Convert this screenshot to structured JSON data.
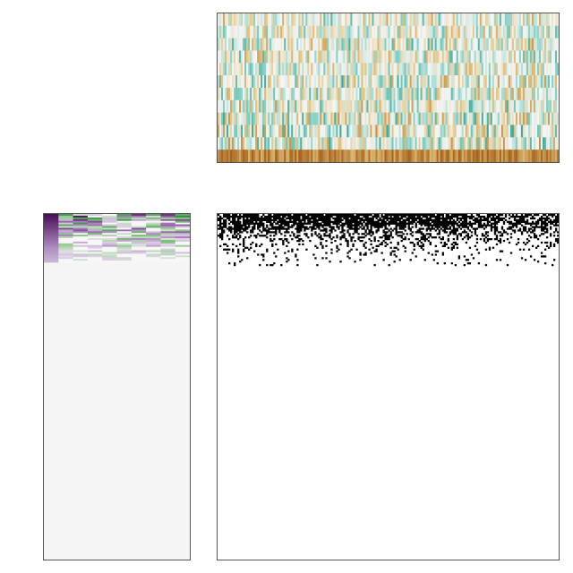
{
  "chart_data": [
    {
      "type": "heatmap",
      "panel": "top",
      "title": "",
      "xlabel": "",
      "ylabel": "",
      "n_rows": 12,
      "n_cols": 190,
      "value_range": [
        -1,
        1
      ],
      "colorscale": [
        "#018571",
        "#80cdc1",
        "#f5f5f5",
        "#dfc27d",
        "#a6611a"
      ],
      "row_profile": [
        0.1,
        0.05,
        0.15,
        0.1,
        0.05,
        0.2,
        0.1,
        0.15,
        0.2,
        0.25,
        0.2,
        0.9
      ],
      "grid": false,
      "legend": "none"
    },
    {
      "type": "heatmap",
      "panel": "left",
      "title": "",
      "xlabel": "",
      "ylabel": "",
      "n_rows": 200,
      "n_cols": 10,
      "value_range": [
        -1,
        1
      ],
      "colorscale": [
        "#1b7837",
        "#7fbf7b",
        "#f7f7f7",
        "#af8dc3",
        "#40004b"
      ],
      "active_rows": 28,
      "grid": false,
      "legend": "none"
    },
    {
      "type": "heatmap",
      "panel": "main",
      "title": "",
      "xlabel": "",
      "ylabel": "",
      "n_rows": 200,
      "n_cols": 190,
      "value_range": [
        0,
        1
      ],
      "colorscale": [
        "#ffffff",
        "#000000"
      ],
      "active_rows": 30,
      "grid": false,
      "legend": "none"
    }
  ]
}
